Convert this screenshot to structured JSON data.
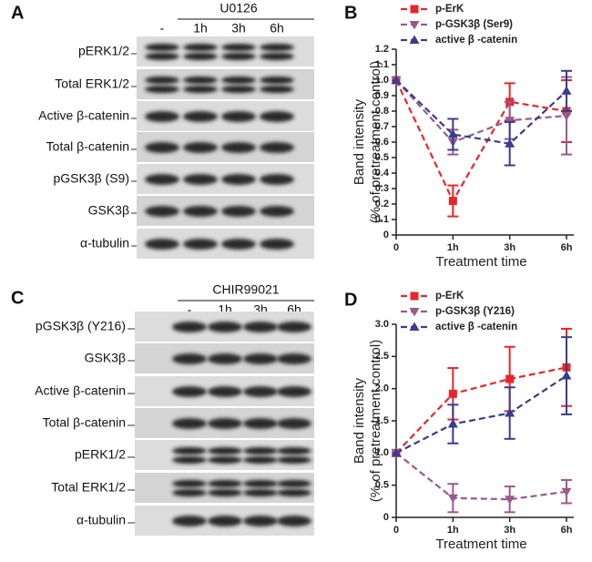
{
  "blots": [
    {
      "panel_label": "A",
      "treatment": "U0126",
      "lanes": [
        "-",
        "1h",
        "3h",
        "6h"
      ],
      "rows": [
        "pERK1/2",
        "Total ERK1/2",
        "Active β-catenin",
        "Total β-catenin",
        "pGSK3β (S9)",
        "GSK3β",
        "α-tubulin"
      ]
    },
    {
      "panel_label": "C",
      "treatment": "CHIR99021",
      "lanes": [
        "-",
        "1h",
        "3h",
        "6h"
      ],
      "rows": [
        "pGSK3β (Y216)",
        "GSK3β",
        "Active β-catenin",
        "Total β-catenin",
        "pERK1/2",
        "Total ERK1/2",
        "α-tubulin"
      ]
    }
  ],
  "chart_data": [
    {
      "type": "line",
      "panel_label": "B",
      "categories": [
        "0",
        "1h",
        "3h",
        "6h"
      ],
      "xlabel": "Treatment time",
      "ylabel": [
        "Band intensity",
        "(% of pretreatment control)"
      ],
      "ylim": [
        0,
        1.2
      ],
      "yticks": [
        0,
        0.1,
        0.2,
        0.3,
        0.4,
        0.5,
        0.6,
        0.7,
        0.8,
        0.9,
        {
          "value": 1,
          "label": "1.0"
        },
        1.1,
        1.2
      ],
      "series": [
        {
          "name": "p-ErK",
          "color": "#e8262a",
          "marker": "square",
          "values": [
            1,
            0.22,
            0.86,
            0.8
          ],
          "errors": [
            null,
            0.1,
            0.12,
            0.2
          ]
        },
        {
          "name": "p-GSK3β (Ser9)",
          "color": "#9a5a8e",
          "marker": "triangle-down",
          "values": [
            1,
            0.6,
            0.74,
            0.77
          ],
          "errors": [
            null,
            0.08,
            0.12,
            0.25
          ]
        },
        {
          "name": "active β -catenin",
          "color": "#3b3b8f",
          "marker": "triangle-up",
          "values": [
            1,
            0.65,
            0.59,
            0.93
          ],
          "errors": [
            null,
            0.1,
            0.14,
            0.13
          ]
        }
      ]
    },
    {
      "type": "line",
      "panel_label": "D",
      "categories": [
        "0",
        "1h",
        "3h",
        "6h"
      ],
      "xlabel": "Treatment time",
      "ylabel": [
        "Band intensity",
        "(% of pretreatment control)"
      ],
      "ylim": [
        0,
        3
      ],
      "yticks": [
        0,
        0.5,
        {
          "value": 1,
          "label": "1.0"
        },
        1.5,
        {
          "value": 2,
          "label": "2.0"
        },
        2.5,
        {
          "value": 3,
          "label": "3.0"
        }
      ],
      "series": [
        {
          "name": "p-ErK",
          "color": "#e8262a",
          "marker": "square",
          "values": [
            1,
            1.92,
            2.15,
            2.33
          ],
          "errors": [
            null,
            0.4,
            0.5,
            0.6
          ]
        },
        {
          "name": "p-GSK3β (Y216)",
          "color": "#9a5a8e",
          "marker": "triangle-down",
          "values": [
            1,
            0.3,
            0.28,
            0.4
          ],
          "errors": [
            null,
            0.22,
            0.2,
            0.18
          ]
        },
        {
          "name": "active β -catenin",
          "color": "#3b3b8f",
          "marker": "triangle-up",
          "values": [
            1,
            1.45,
            1.62,
            2.2
          ],
          "errors": [
            null,
            0.3,
            0.4,
            0.6
          ]
        }
      ]
    }
  ]
}
